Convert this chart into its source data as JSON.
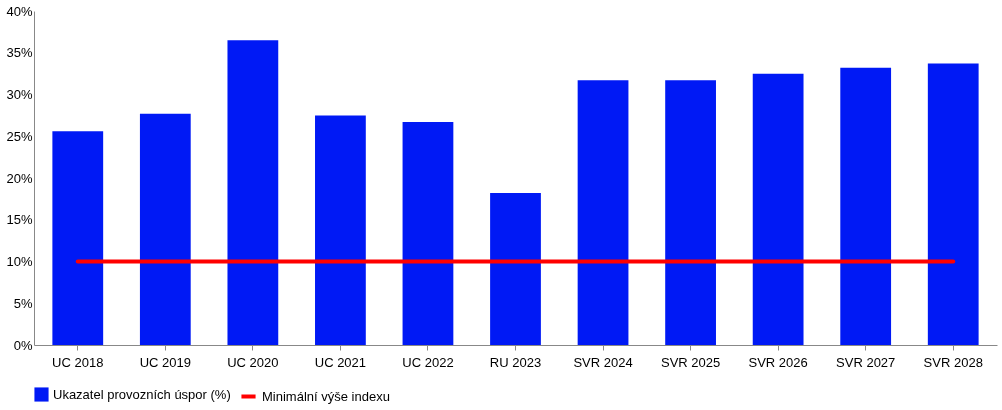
{
  "chart_data": {
    "type": "bar",
    "categories": [
      "UC 2018",
      "UC 2019",
      "UC 2020",
      "UC 2021",
      "UC 2022",
      "RU 2023",
      "SVR 2024",
      "SVR 2025",
      "SVR 2026",
      "SVR 2027",
      "SVR 2028"
    ],
    "series": [
      {
        "name": "Ukazatel provozních úspor (%)",
        "color": "#0019f5",
        "values": [
          25.6,
          27.7,
          36.5,
          27.5,
          26.7,
          18.2,
          31.7,
          31.7,
          32.5,
          33.2,
          33.7
        ]
      },
      {
        "name": "Minimální výše indexu",
        "type": "line",
        "color": "#ff0000",
        "values": [
          10,
          10,
          10,
          10,
          10,
          10,
          10,
          10,
          10,
          10,
          10
        ]
      }
    ],
    "ylim": [
      0,
      40
    ],
    "yticks": [
      {
        "value": 0,
        "label": "0%"
      },
      {
        "value": 5,
        "label": "5%"
      },
      {
        "value": 10,
        "label": "10%"
      },
      {
        "value": 15,
        "label": "15%"
      },
      {
        "value": 20,
        "label": "20%"
      },
      {
        "value": 25,
        "label": "25%"
      },
      {
        "value": 30,
        "label": "30%"
      },
      {
        "value": 35,
        "label": "35%"
      },
      {
        "value": 40,
        "label": "40%"
      }
    ],
    "grid": false,
    "legend": "bottom"
  }
}
